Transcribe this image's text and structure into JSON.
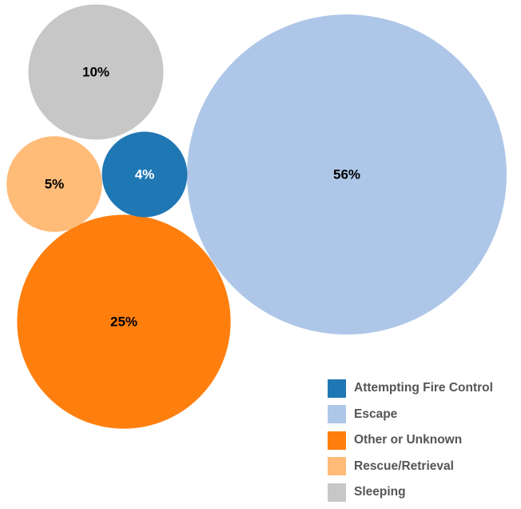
{
  "chart_data": {
    "type": "bubble",
    "title": "",
    "series": [
      {
        "name": "Escape",
        "value": 56,
        "label": "56%",
        "color": "#aec7e8",
        "label_color": "#000000"
      },
      {
        "name": "Other or Unknown",
        "value": 25,
        "label": "25%",
        "color": "#ff7f0e",
        "label_color": "#000000"
      },
      {
        "name": "Sleeping",
        "value": 10,
        "label": "10%",
        "color": "#c7c7c7",
        "label_color": "#000000"
      },
      {
        "name": "Rescue/Retrieval",
        "value": 5,
        "label": "5%",
        "color": "#ffbb78",
        "label_color": "#000000"
      },
      {
        "name": "Attempting Fire Control",
        "value": 4,
        "label": "4%",
        "color": "#1f77b4",
        "label_color": "#ffffff"
      }
    ],
    "legend": {
      "position": "bottom-right",
      "items": [
        {
          "label": "Attempting Fire Control",
          "color": "#1f77b4"
        },
        {
          "label": "Escape",
          "color": "#aec7e8"
        },
        {
          "label": "Other or Unknown",
          "color": "#ff7f0e"
        },
        {
          "label": "Rescue/Retrieval",
          "color": "#ffbb78"
        },
        {
          "label": "Sleeping",
          "color": "#c7c7c7"
        }
      ]
    }
  }
}
